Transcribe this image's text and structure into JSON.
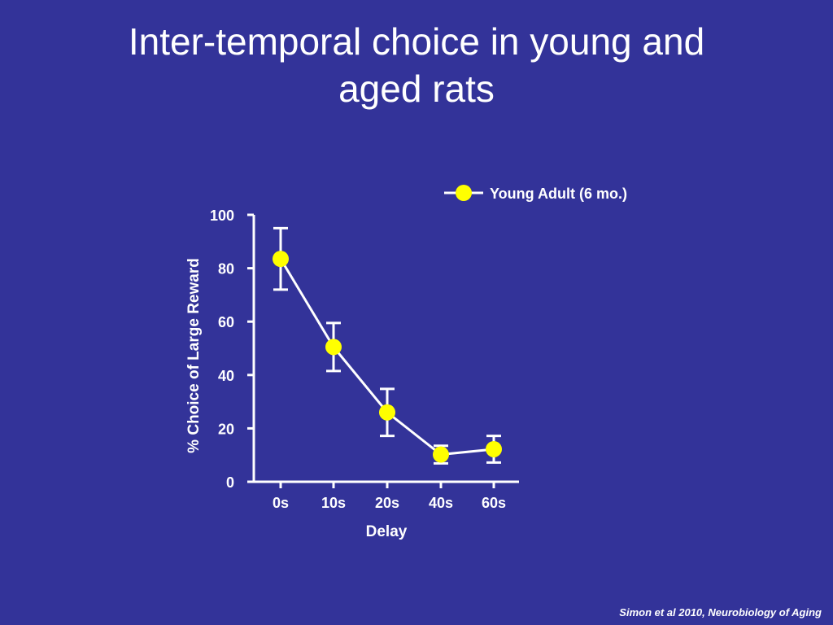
{
  "slide": {
    "title_line1": "Inter-temporal choice in young and",
    "title_line2": "aged rats",
    "citation": "Simon et al 2010, Neurobiology of Aging"
  },
  "colors": {
    "background": "#333399",
    "axis": "#ffffff",
    "marker": "#ffff00",
    "text": "#ffffff"
  },
  "chart_data": {
    "type": "line",
    "title": "",
    "xlabel": "Delay",
    "ylabel": "% Choice of Large Reward",
    "categories": [
      "0s",
      "10s",
      "20s",
      "40s",
      "60s"
    ],
    "ylim": [
      0,
      100
    ],
    "yticks": [
      0,
      20,
      40,
      60,
      80,
      100
    ],
    "grid": false,
    "legend_position": "top-right",
    "series": [
      {
        "name": "Young Adult (6 mo.)",
        "values": [
          83.5,
          50.5,
          26,
          10.2,
          12.2
        ],
        "error": [
          11.5,
          9,
          8.8,
          3.3,
          5
        ]
      }
    ]
  }
}
